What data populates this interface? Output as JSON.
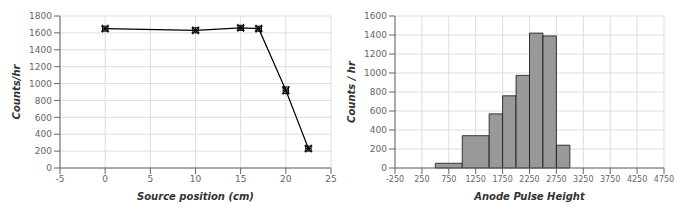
{
  "chart_data": [
    {
      "type": "line",
      "x": [
        0,
        10,
        15,
        17,
        20,
        22.5
      ],
      "values": [
        1650,
        1630,
        1660,
        1650,
        920,
        230
      ],
      "yerr": [
        30,
        30,
        30,
        30,
        40,
        30
      ],
      "xerr": [
        0.3,
        0.3,
        0.3,
        0.3,
        0.3,
        0.3
      ],
      "xlim": [
        -5,
        25
      ],
      "ylim": [
        0,
        1800
      ],
      "xticks": [
        -5,
        0,
        5,
        10,
        15,
        20,
        25
      ],
      "yticks": [
        0,
        200,
        400,
        600,
        800,
        1000,
        1200,
        1400,
        1600,
        1800
      ],
      "xlabel": "Source position (cm)",
      "ylabel": "Counts/hr",
      "grid": true,
      "color": "#000000",
      "marker": "x"
    },
    {
      "type": "histogram",
      "bins": [
        500,
        1000,
        1500,
        1750,
        2000,
        2250,
        2500,
        2750,
        3000
      ],
      "values": [
        50,
        340,
        570,
        760,
        975,
        1420,
        1390,
        240
      ],
      "xlim": [
        -250,
        4750
      ],
      "ylim": [
        0,
        1600
      ],
      "xticks": [
        -250,
        250,
        750,
        1250,
        1750,
        2250,
        2750,
        3250,
        3750,
        4250,
        4750
      ],
      "yticks": [
        0,
        200,
        400,
        600,
        800,
        1000,
        1200,
        1400,
        1600
      ],
      "xlabel": "Anode Pulse Height",
      "ylabel": "Counts / hr",
      "grid": true,
      "color": "#999999"
    }
  ]
}
